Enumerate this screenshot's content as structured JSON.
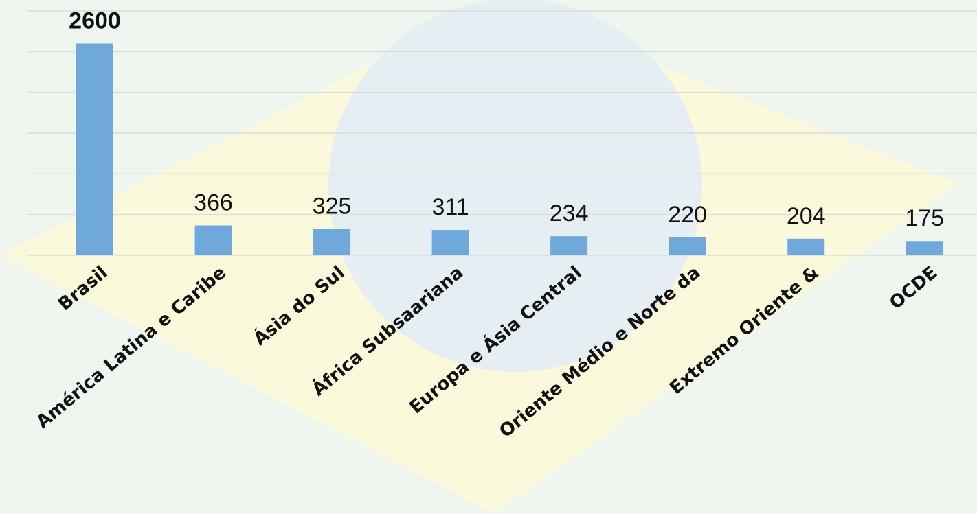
{
  "chart_data": {
    "type": "bar",
    "categories": [
      "Brasil",
      "América Latina e Caribe",
      "Ásia do Sul",
      "África Subsaariana",
      "Europa e Ásia Central",
      "Oriente Médio e Norte da",
      "Extremo Oriente &",
      "OCDE"
    ],
    "values": [
      2600,
      366,
      325,
      311,
      234,
      220,
      204,
      175
    ],
    "color": "#6fa9dc",
    "ylim": [
      0,
      3000
    ],
    "yticks": [
      0,
      500,
      1000,
      1500,
      2000,
      2500,
      3000
    ],
    "grid": true
  }
}
